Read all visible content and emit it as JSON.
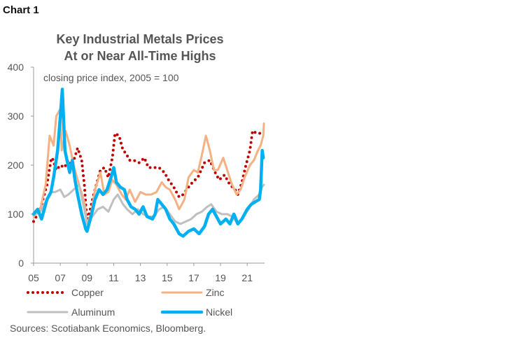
{
  "chart_label": "Chart 1",
  "source_note": "Sources: Scotiabank Economics, Bloomberg.",
  "chart_data": {
    "type": "line",
    "title": [
      "Key Industrial Metals Prices",
      "At or Near All-Time Highs"
    ],
    "subtitle": "closing price index, 2005 = 100",
    "xlabel": "",
    "ylabel": "",
    "xlim": [
      2005,
      2022.3
    ],
    "ylim": [
      0,
      400
    ],
    "y_ticks": [
      0,
      100,
      200,
      300,
      400
    ],
    "x_ticks": [
      2005,
      2007,
      2009,
      2011,
      2013,
      2015,
      2017,
      2019,
      2021
    ],
    "x_tick_labels": [
      "05",
      "07",
      "09",
      "11",
      "13",
      "15",
      "17",
      "19",
      "21"
    ],
    "grid": false,
    "legend_position": "bottom",
    "series": [
      {
        "name": "Copper",
        "color": "#c00000",
        "style": "dotted",
        "x": [
          2005,
          2005.5,
          2006,
          2006.3,
          2006.4,
          2006.7,
          2007,
          2007.3,
          2007.6,
          2007.9,
          2008.3,
          2008.6,
          2008.8,
          2009,
          2009.2,
          2009.5,
          2009.8,
          2010,
          2010.3,
          2010.6,
          2010.9,
          2011.1,
          2011.4,
          2011.7,
          2011.9,
          2012.2,
          2012.5,
          2012.9,
          2013.3,
          2013.6,
          2014,
          2014.4,
          2014.8,
          2015.1,
          2015.5,
          2015.9,
          2016.2,
          2016.6,
          2016.9,
          2017.3,
          2017.8,
          2018.2,
          2018.6,
          2018.9,
          2019.3,
          2019.7,
          2020.1,
          2020.3,
          2020.6,
          2020.9,
          2021.2,
          2021.4,
          2021.7,
          2022,
          2022.2
        ],
        "values": [
          85,
          110,
          160,
          210,
          215,
          190,
          200,
          195,
          210,
          200,
          235,
          210,
          160,
          85,
          105,
          140,
          170,
          190,
          195,
          175,
          215,
          265,
          260,
          230,
          225,
          210,
          210,
          205,
          215,
          195,
          195,
          195,
          185,
          170,
          155,
          135,
          140,
          155,
          165,
          175,
          205,
          210,
          185,
          170,
          180,
          160,
          150,
          140,
          165,
          200,
          230,
          270,
          265,
          265,
          270
        ]
      },
      {
        "name": "Zinc",
        "color": "#f4b183",
        "style": "solid",
        "x": [
          2005,
          2005.5,
          2005.9,
          2006.2,
          2006.5,
          2006.7,
          2007,
          2007.1,
          2007.4,
          2007.7,
          2008,
          2008.4,
          2008.8,
          2009,
          2009.3,
          2009.6,
          2010,
          2010.3,
          2010.6,
          2010.9,
          2011.2,
          2011.6,
          2011.9,
          2012.2,
          2012.6,
          2013,
          2013.4,
          2013.8,
          2014.2,
          2014.6,
          2014.9,
          2015.2,
          2015.6,
          2015.9,
          2016.3,
          2016.6,
          2017,
          2017.3,
          2017.6,
          2017.9,
          2018.2,
          2018.5,
          2018.8,
          2019.2,
          2019.5,
          2019.8,
          2020.2,
          2020.5,
          2020.8,
          2021.2,
          2021.5,
          2021.8,
          2022,
          2022.2,
          2022.25
        ],
        "values": [
          95,
          110,
          160,
          260,
          240,
          300,
          315,
          230,
          270,
          240,
          200,
          160,
          125,
          80,
          100,
          150,
          185,
          140,
          145,
          170,
          160,
          140,
          130,
          150,
          125,
          145,
          140,
          140,
          145,
          165,
          155,
          150,
          130,
          110,
          130,
          175,
          190,
          185,
          220,
          260,
          230,
          190,
          190,
          215,
          190,
          165,
          140,
          150,
          175,
          200,
          210,
          230,
          240,
          260,
          285
        ]
      },
      {
        "name": "Aluminum",
        "color": "#bfbfbf",
        "style": "solid",
        "x": [
          2005,
          2005.5,
          2006,
          2006.3,
          2006.6,
          2007,
          2007.3,
          2007.6,
          2008,
          2008.4,
          2008.8,
          2009,
          2009.4,
          2009.8,
          2010.2,
          2010.6,
          2011,
          2011.3,
          2011.7,
          2012,
          2012.4,
          2012.8,
          2013.2,
          2013.6,
          2014,
          2014.4,
          2014.8,
          2015.2,
          2015.6,
          2016,
          2016.4,
          2016.8,
          2017.2,
          2017.6,
          2018,
          2018.3,
          2018.7,
          2019.1,
          2019.5,
          2019.9,
          2020.3,
          2020.7,
          2021.1,
          2021.5,
          2021.9,
          2022.1,
          2022.25
        ],
        "values": [
          100,
          105,
          130,
          145,
          145,
          150,
          135,
          140,
          150,
          160,
          110,
          80,
          95,
          110,
          115,
          105,
          130,
          140,
          120,
          110,
          100,
          110,
          100,
          95,
          95,
          110,
          115,
          100,
          85,
          80,
          85,
          90,
          100,
          105,
          115,
          120,
          105,
          100,
          100,
          95,
          80,
          95,
          110,
          130,
          140,
          155,
          160
        ]
      },
      {
        "name": "Nickel",
        "color": "#00b0f0",
        "style": "solid",
        "x": [
          2005,
          2005.3,
          2005.6,
          2006,
          2006.3,
          2006.5,
          2006.8,
          2007,
          2007.15,
          2007.35,
          2007.5,
          2007.7,
          2007.9,
          2008.1,
          2008.3,
          2008.6,
          2008.9,
          2009,
          2009.3,
          2009.6,
          2009.9,
          2010.2,
          2010.5,
          2010.8,
          2011,
          2011.2,
          2011.5,
          2011.8,
          2012,
          2012.3,
          2012.6,
          2012.9,
          2013.2,
          2013.5,
          2013.9,
          2014.1,
          2014.3,
          2014.6,
          2014.9,
          2015.2,
          2015.5,
          2015.9,
          2016.2,
          2016.6,
          2017,
          2017.4,
          2017.8,
          2018.1,
          2018.4,
          2018.7,
          2019,
          2019.4,
          2019.7,
          2020,
          2020.3,
          2020.6,
          2021,
          2021.3,
          2021.6,
          2021.9,
          2022,
          2022.12,
          2022.2
        ],
        "values": [
          100,
          110,
          90,
          130,
          145,
          175,
          230,
          300,
          355,
          230,
          210,
          185,
          210,
          170,
          140,
          100,
          70,
          65,
          95,
          130,
          150,
          140,
          150,
          175,
          195,
          165,
          155,
          150,
          130,
          115,
          110,
          100,
          115,
          95,
          90,
          100,
          130,
          120,
          110,
          90,
          80,
          60,
          55,
          65,
          70,
          60,
          75,
          100,
          110,
          95,
          80,
          90,
          80,
          100,
          80,
          90,
          110,
          120,
          125,
          130,
          150,
          230,
          215
        ]
      }
    ]
  }
}
